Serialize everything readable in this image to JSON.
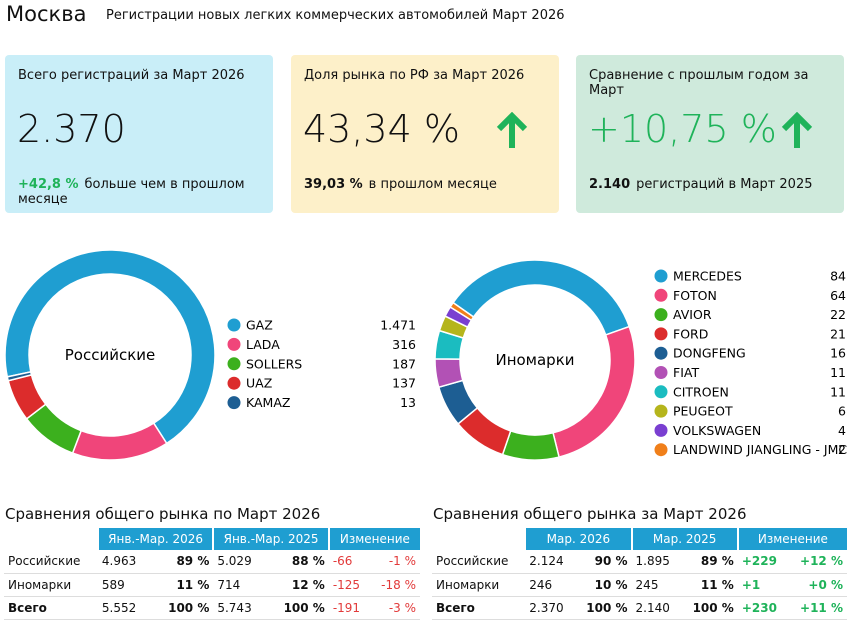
{
  "header": {
    "city": "Москва",
    "subtitle": "Регистрации новых легких коммерческих автомобилей Март 2026"
  },
  "cards": [
    {
      "title": "Всего регистраций за Март 2026",
      "value": "2.370",
      "change": "+42,8 %",
      "change_text": "больше чем в прошлом месяце"
    },
    {
      "title": "Доля рынка по РФ за Март 2026",
      "value": "43,34 %",
      "change": "39,03 %",
      "change_text": "в прошлом месяце"
    },
    {
      "title": "Сравнение с прошлым годом за Март",
      "value": "+10,75 %",
      "change": "2.140",
      "change_text": "регистраций в Март 2025"
    }
  ],
  "chart_data": [
    {
      "type": "pie",
      "title": "Российские",
      "categories": [
        "GAZ",
        "LADA",
        "SOLLERS",
        "UAZ",
        "KAMAZ"
      ],
      "values": [
        1471,
        316,
        187,
        137,
        13
      ],
      "value_labels": [
        "1.471",
        "316",
        "187",
        "137",
        "13"
      ],
      "colors": [
        "#1f9ed1",
        "#f0457a",
        "#3cb01e",
        "#dc2c2c",
        "#1d5e93"
      ]
    },
    {
      "type": "pie",
      "title": "Иномарки",
      "categories": [
        "MERCEDES",
        "FOTON",
        "AVIOR",
        "FORD",
        "DONGFENG",
        "FIAT",
        "CITROEN",
        "PEUGEOT",
        "VOLKSWAGEN",
        "LANDWIND JIANGLING - JMC"
      ],
      "values": [
        84,
        64,
        22,
        21,
        16,
        11,
        11,
        6,
        4,
        2
      ],
      "colors": [
        "#1f9ed1",
        "#f0457a",
        "#3cb01e",
        "#dc2c2c",
        "#1d5e93",
        "#b251b5",
        "#1bbcc0",
        "#b5b51c",
        "#7a3fd1",
        "#f07f1a"
      ]
    }
  ],
  "tables": [
    {
      "title": "Сравнения общего рынка по Март 2026",
      "headers": [
        "Янв.-Мар. 2026",
        "Янв.-Мар. 2025",
        "Изменение"
      ],
      "rows": [
        [
          "Российские",
          "4.963",
          "89 %",
          "5.029",
          "88 %",
          "-66",
          "-1 %"
        ],
        [
          "Иномарки",
          "589",
          "11 %",
          "714",
          "12 %",
          "-125",
          "-18 %"
        ],
        [
          "Всего",
          "5.552",
          "100 %",
          "5.743",
          "100 %",
          "-191",
          "-3 %"
        ]
      ]
    },
    {
      "title": "Сравнения общего рынка за Март 2026",
      "headers": [
        "Мар. 2026",
        "Мар. 2025",
        "Изменение"
      ],
      "rows": [
        [
          "Российские",
          "2.124",
          "90 %",
          "1.895",
          "89 %",
          "+229",
          "+12 %"
        ],
        [
          "Иномарки",
          "246",
          "10 %",
          "245",
          "11 %",
          "+1",
          "+0 %"
        ],
        [
          "Всего",
          "2.370",
          "100 %",
          "2.140",
          "100 %",
          "+230",
          "+11 %"
        ]
      ]
    }
  ]
}
